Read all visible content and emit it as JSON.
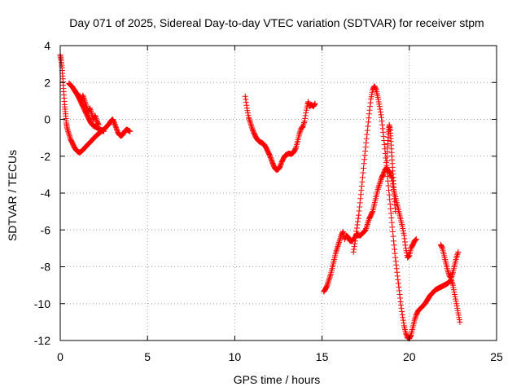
{
  "chart_data": {
    "type": "scatter",
    "title": "Day 071 of 2025, Sidereal Day-to-day VTEC variation (SDTVAR) for receiver stpm",
    "xlabel": "GPS time / hours",
    "ylabel": "SDTVAR / TECUs",
    "xlim": [
      0,
      25
    ],
    "ylim": [
      -12,
      4
    ],
    "xticks": [
      0,
      5,
      10,
      15,
      20,
      25
    ],
    "yticks": [
      -12,
      -10,
      -8,
      -6,
      -4,
      -2,
      0,
      2,
      4
    ],
    "grid": true,
    "marker": "plus",
    "color": "#ff0000",
    "series": [
      {
        "name": "",
        "segments": [
          [
            [
              0.0,
              3.5
            ],
            [
              0.05,
              3.2
            ],
            [
              0.1,
              2.8
            ],
            [
              0.15,
              2.2
            ],
            [
              0.2,
              1.5
            ],
            [
              0.25,
              0.8
            ],
            [
              0.3,
              0.3
            ],
            [
              0.35,
              -0.2
            ],
            [
              0.4,
              -0.5
            ],
            [
              0.5,
              -0.8
            ],
            [
              0.6,
              -1.1
            ],
            [
              0.7,
              -1.3
            ],
            [
              0.8,
              -1.5
            ],
            [
              0.9,
              -1.65
            ],
            [
              1.0,
              -1.75
            ],
            [
              1.1,
              -1.8
            ],
            [
              1.2,
              -1.75
            ],
            [
              1.3,
              -1.65
            ],
            [
              1.4,
              -1.55
            ],
            [
              1.5,
              -1.45
            ],
            [
              1.6,
              -1.35
            ],
            [
              1.7,
              -1.25
            ],
            [
              1.8,
              -1.15
            ],
            [
              1.9,
              -1.05
            ],
            [
              2.0,
              -0.95
            ],
            [
              2.1,
              -0.85
            ],
            [
              2.2,
              -0.78
            ],
            [
              2.3,
              -0.7
            ],
            [
              2.4,
              -0.62
            ],
            [
              2.5,
              -0.55
            ],
            [
              2.6,
              -0.45
            ],
            [
              2.7,
              -0.35
            ],
            [
              2.8,
              -0.25
            ],
            [
              2.9,
              -0.1
            ],
            [
              3.0,
              0.0
            ],
            [
              3.1,
              -0.2
            ],
            [
              3.2,
              -0.45
            ],
            [
              3.3,
              -0.7
            ],
            [
              3.4,
              -0.85
            ],
            [
              3.5,
              -0.9
            ],
            [
              3.6,
              -0.8
            ],
            [
              3.7,
              -0.65
            ],
            [
              3.8,
              -0.55
            ],
            [
              3.9,
              -0.6
            ],
            [
              4.0,
              -0.65
            ]
          ],
          [
            [
              0.5,
              1.95
            ],
            [
              0.6,
              1.85
            ],
            [
              0.7,
              1.75
            ],
            [
              0.8,
              1.6
            ],
            [
              0.9,
              1.45
            ],
            [
              1.0,
              1.3
            ],
            [
              1.1,
              1.1
            ],
            [
              1.2,
              0.9
            ],
            [
              1.3,
              0.7
            ],
            [
              1.4,
              0.5
            ],
            [
              1.5,
              0.3
            ],
            [
              1.6,
              0.1
            ],
            [
              1.7,
              -0.1
            ],
            [
              1.8,
              -0.25
            ],
            [
              1.9,
              -0.35
            ],
            [
              2.0,
              -0.4
            ],
            [
              2.1,
              -0.45
            ],
            [
              2.2,
              -0.5
            ],
            [
              2.3,
              -0.55
            ],
            [
              2.4,
              -0.6
            ],
            [
              2.5,
              -0.65
            ]
          ],
          [
            [
              1.0,
              1.4
            ],
            [
              1.1,
              1.2
            ],
            [
              1.2,
              1.0
            ],
            [
              1.3,
              1.3
            ],
            [
              1.4,
              1.0
            ],
            [
              1.5,
              0.7
            ],
            [
              1.6,
              0.4
            ],
            [
              1.7,
              0.6
            ],
            [
              1.8,
              0.3
            ],
            [
              1.9,
              0.0
            ],
            [
              2.0,
              0.2
            ],
            [
              2.1,
              -0.1
            ],
            [
              2.2,
              -0.3
            ]
          ],
          [
            [
              10.6,
              1.25
            ],
            [
              10.7,
              0.6
            ],
            [
              10.8,
              0.1
            ],
            [
              10.9,
              -0.2
            ],
            [
              11.0,
              -0.5
            ],
            [
              11.1,
              -0.75
            ],
            [
              11.2,
              -0.95
            ],
            [
              11.3,
              -1.1
            ],
            [
              11.4,
              -1.2
            ],
            [
              11.5,
              -1.25
            ],
            [
              11.6,
              -1.3
            ],
            [
              11.7,
              -1.4
            ],
            [
              11.8,
              -1.55
            ],
            [
              11.9,
              -1.75
            ],
            [
              12.0,
              -1.95
            ],
            [
              12.1,
              -2.2
            ],
            [
              12.2,
              -2.45
            ],
            [
              12.3,
              -2.65
            ],
            [
              12.4,
              -2.75
            ],
            [
              12.5,
              -2.7
            ],
            [
              12.6,
              -2.55
            ],
            [
              12.7,
              -2.3
            ],
            [
              12.8,
              -2.1
            ],
            [
              12.9,
              -1.95
            ],
            [
              13.0,
              -1.9
            ],
            [
              13.1,
              -1.85
            ],
            [
              13.2,
              -1.88
            ],
            [
              13.3,
              -1.85
            ],
            [
              13.4,
              -1.75
            ],
            [
              13.5,
              -1.55
            ],
            [
              13.6,
              -1.2
            ],
            [
              13.7,
              -0.8
            ],
            [
              13.8,
              -0.5
            ],
            [
              13.9,
              -0.4
            ],
            [
              14.0,
              -0.1
            ],
            [
              14.1,
              0.5
            ],
            [
              14.2,
              0.95
            ],
            [
              14.3,
              0.7
            ],
            [
              14.4,
              0.8
            ],
            [
              14.5,
              0.7
            ],
            [
              14.6,
              0.85
            ]
          ],
          [
            [
              15.1,
              -9.35
            ],
            [
              15.2,
              -9.2
            ],
            [
              15.3,
              -9.0
            ],
            [
              15.4,
              -8.7
            ],
            [
              15.5,
              -8.4
            ],
            [
              15.6,
              -8.0
            ],
            [
              15.7,
              -7.6
            ],
            [
              15.8,
              -7.2
            ],
            [
              15.9,
              -6.9
            ],
            [
              16.0,
              -6.6
            ],
            [
              16.1,
              -6.3
            ],
            [
              16.2,
              -6.1
            ],
            [
              16.3,
              -6.5
            ],
            [
              16.4,
              -6.3
            ],
            [
              16.5,
              -6.4
            ],
            [
              16.6,
              -6.6
            ],
            [
              16.7,
              -6.6
            ],
            [
              16.8,
              -6.5
            ],
            [
              16.9,
              -6.4
            ],
            [
              17.0,
              -6.2
            ],
            [
              17.1,
              -6.3
            ],
            [
              17.2,
              -6.3
            ],
            [
              17.3,
              -6.2
            ],
            [
              17.4,
              -6.1
            ],
            [
              17.5,
              -6.0
            ],
            [
              17.6,
              -5.7
            ],
            [
              17.7,
              -5.4
            ],
            [
              17.8,
              -5.2
            ],
            [
              17.9,
              -5.0
            ],
            [
              18.0,
              -4.6
            ],
            [
              18.1,
              -4.2
            ],
            [
              18.2,
              -3.8
            ],
            [
              18.3,
              -3.5
            ],
            [
              18.4,
              -3.2
            ],
            [
              18.5,
              -3.0
            ],
            [
              18.6,
              -2.75
            ],
            [
              18.7,
              -2.65
            ],
            [
              18.8,
              -2.8
            ],
            [
              18.9,
              -2.9
            ],
            [
              19.0,
              -3.2
            ],
            [
              19.1,
              -3.8
            ],
            [
              19.2,
              -4.2
            ],
            [
              19.3,
              -4.6
            ],
            [
              19.4,
              -5.0
            ],
            [
              19.5,
              -5.4
            ],
            [
              19.6,
              -5.8
            ],
            [
              19.7,
              -6.3
            ],
            [
              19.8,
              -7.0
            ],
            [
              19.9,
              -7.5
            ],
            [
              20.0,
              -7.4
            ],
            [
              20.1,
              -7.0
            ],
            [
              20.2,
              -6.8
            ],
            [
              20.3,
              -6.6
            ],
            [
              20.4,
              -6.5
            ]
          ],
          [
            [
              16.8,
              -7.2
            ],
            [
              16.9,
              -6.6
            ],
            [
              17.0,
              -5.9
            ],
            [
              17.1,
              -5.2
            ],
            [
              17.2,
              -4.3
            ],
            [
              17.3,
              -3.4
            ],
            [
              17.4,
              -2.4
            ],
            [
              17.5,
              -1.5
            ],
            [
              17.6,
              -0.6
            ],
            [
              17.7,
              0.3
            ],
            [
              17.8,
              1.1
            ],
            [
              17.9,
              1.6
            ],
            [
              18.0,
              1.8
            ],
            [
              18.1,
              1.6
            ],
            [
              18.2,
              1.2
            ],
            [
              18.3,
              0.7
            ],
            [
              18.4,
              0.1
            ],
            [
              18.5,
              -0.7
            ],
            [
              18.6,
              -1.6
            ],
            [
              18.7,
              -2.6
            ],
            [
              18.8,
              -3.6
            ],
            [
              18.9,
              -4.6
            ],
            [
              19.0,
              -5.6
            ],
            [
              19.1,
              -6.6
            ],
            [
              19.2,
              -7.5
            ],
            [
              19.3,
              -8.3
            ],
            [
              19.4,
              -9.1
            ],
            [
              19.5,
              -9.9
            ],
            [
              19.6,
              -10.6
            ],
            [
              19.7,
              -11.2
            ],
            [
              19.8,
              -11.6
            ],
            [
              19.9,
              -11.85
            ],
            [
              20.0,
              -11.9
            ],
            [
              20.1,
              -11.7
            ],
            [
              20.2,
              -11.3
            ],
            [
              20.3,
              -10.9
            ],
            [
              20.4,
              -10.6
            ],
            [
              20.5,
              -10.4
            ],
            [
              20.6,
              -10.3
            ],
            [
              20.7,
              -10.2
            ],
            [
              20.8,
              -10.1
            ],
            [
              20.9,
              -10.0
            ],
            [
              21.0,
              -9.85
            ],
            [
              21.1,
              -9.7
            ],
            [
              21.2,
              -9.55
            ],
            [
              21.3,
              -9.45
            ],
            [
              21.4,
              -9.35
            ],
            [
              21.5,
              -9.25
            ],
            [
              21.6,
              -9.2
            ],
            [
              21.7,
              -9.15
            ],
            [
              21.8,
              -9.1
            ],
            [
              21.9,
              -9.05
            ],
            [
              22.0,
              -9.0
            ],
            [
              22.1,
              -8.95
            ],
            [
              22.2,
              -8.9
            ],
            [
              22.3,
              -8.8
            ],
            [
              22.4,
              -8.7
            ],
            [
              22.5,
              -9.0
            ],
            [
              22.6,
              -9.5
            ],
            [
              22.7,
              -10.0
            ],
            [
              22.8,
              -10.5
            ],
            [
              22.9,
              -11.0
            ]
          ],
          [
            [
              18.7,
              -2.5
            ],
            [
              18.75,
              -1.5
            ],
            [
              18.8,
              -0.8
            ],
            [
              18.85,
              -0.3
            ],
            [
              18.9,
              -0.6
            ],
            [
              18.95,
              -1.2
            ],
            [
              19.0,
              -2.0
            ],
            [
              19.05,
              -2.8
            ],
            [
              19.1,
              -3.5
            ],
            [
              19.15,
              -4.3
            ],
            [
              19.2,
              -5.0
            ]
          ],
          [
            [
              21.8,
              -6.8
            ],
            [
              21.9,
              -7.0
            ],
            [
              22.0,
              -7.4
            ],
            [
              22.1,
              -7.8
            ],
            [
              22.2,
              -8.2
            ],
            [
              22.3,
              -8.5
            ],
            [
              22.4,
              -8.6
            ],
            [
              22.5,
              -8.3
            ],
            [
              22.6,
              -7.9
            ],
            [
              22.7,
              -7.5
            ],
            [
              22.8,
              -7.2
            ]
          ]
        ]
      }
    ]
  }
}
